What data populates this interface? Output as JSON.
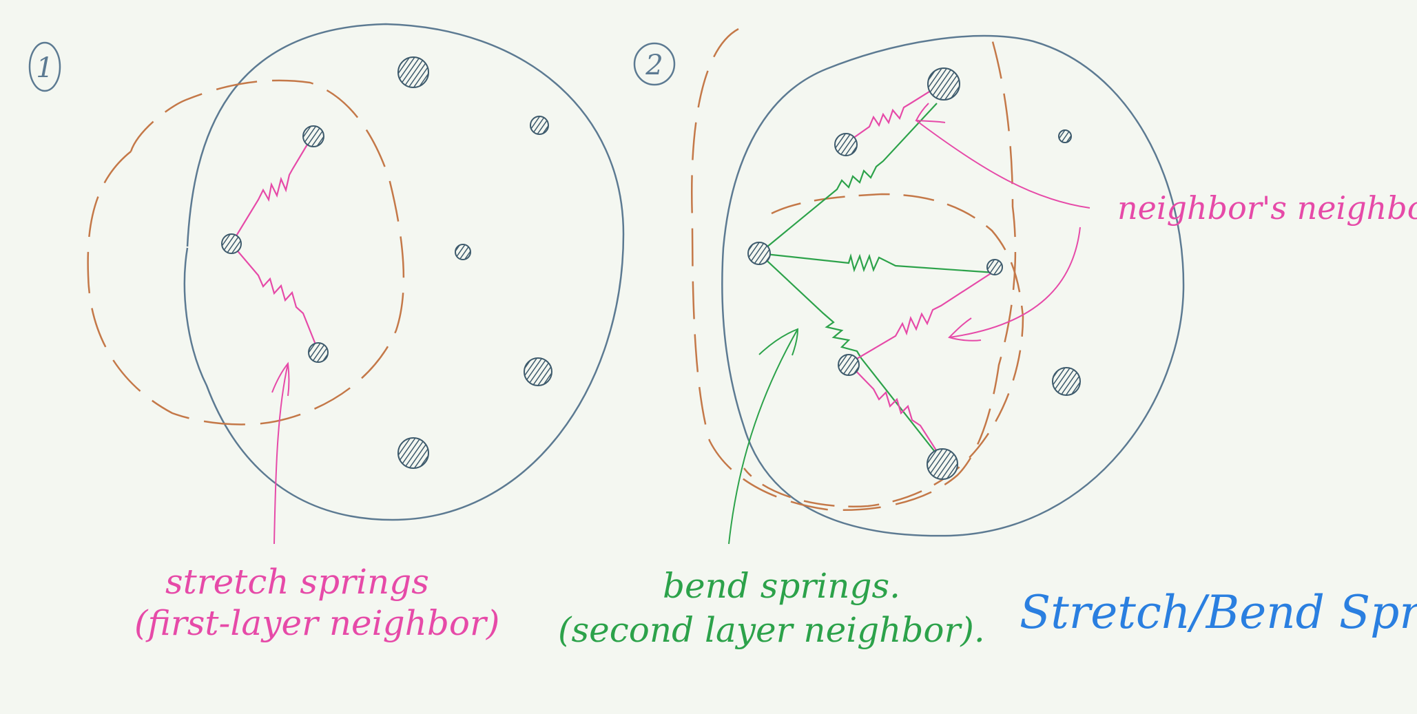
{
  "colors": {
    "background": "#f4f7f1",
    "boundary": "#5c7a92",
    "node": "#3d5a6c",
    "dashed_region": "#c47848",
    "stretch": "#e64aa8",
    "bend": "#2ca24a",
    "title": "#2a7fe0"
  },
  "panel1": {
    "number": "1",
    "label_line1": "stretch springs",
    "label_line2": "(first-layer neighbor)"
  },
  "panel2": {
    "number": "2",
    "label_line1": "bend springs.",
    "label_line2": "(second layer neighbor).",
    "callout": "neighbor's neighbor"
  },
  "title": "Stretch/Bend Springs"
}
